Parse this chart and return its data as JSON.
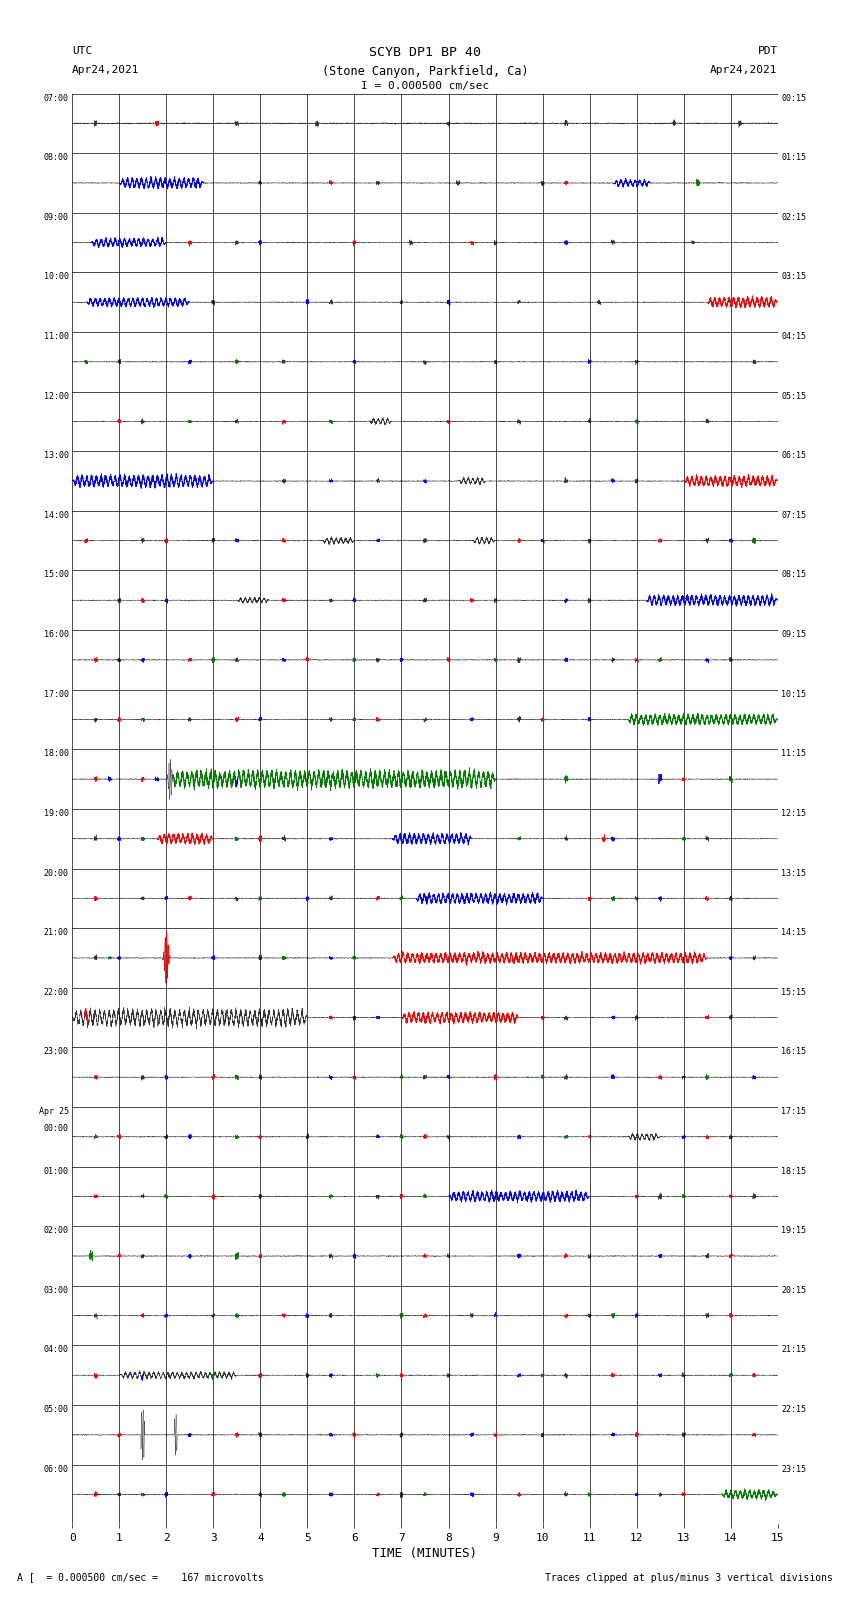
{
  "title_line1": "SCYB DP1 BP 40",
  "title_line2": "(Stone Canyon, Parkfield, Ca)",
  "scale_text": "I = 0.000500 cm/sec",
  "left_label_line1": "UTC",
  "left_label_line2": "Apr24,2021",
  "right_label_line1": "PDT",
  "right_label_line2": "Apr24,2021",
  "xlabel": "TIME (MINUTES)",
  "footer_left": "A [  = 0.000500 cm/sec =    167 microvolts",
  "footer_right": "Traces clipped at plus/minus 3 vertical divisions",
  "num_rows": 24,
  "xlim": [
    0,
    15
  ],
  "xticks": [
    0,
    1,
    2,
    3,
    4,
    5,
    6,
    7,
    8,
    9,
    10,
    11,
    12,
    13,
    14,
    15
  ],
  "left_times": [
    "07:00",
    "08:00",
    "09:00",
    "10:00",
    "11:00",
    "12:00",
    "13:00",
    "14:00",
    "15:00",
    "16:00",
    "17:00",
    "18:00",
    "19:00",
    "20:00",
    "21:00",
    "22:00",
    "23:00",
    "Apr 25\n00:00",
    "01:00",
    "02:00",
    "03:00",
    "04:00",
    "05:00",
    "06:00"
  ],
  "right_times": [
    "00:15",
    "01:15",
    "02:15",
    "03:15",
    "04:15",
    "05:15",
    "06:15",
    "07:15",
    "08:15",
    "09:15",
    "10:15",
    "11:15",
    "12:15",
    "13:15",
    "14:15",
    "15:15",
    "16:15",
    "17:15",
    "18:15",
    "19:15",
    "20:15",
    "21:15",
    "22:15",
    "23:15"
  ],
  "fig_width": 8.5,
  "fig_height": 16.13,
  "dpi": 100
}
